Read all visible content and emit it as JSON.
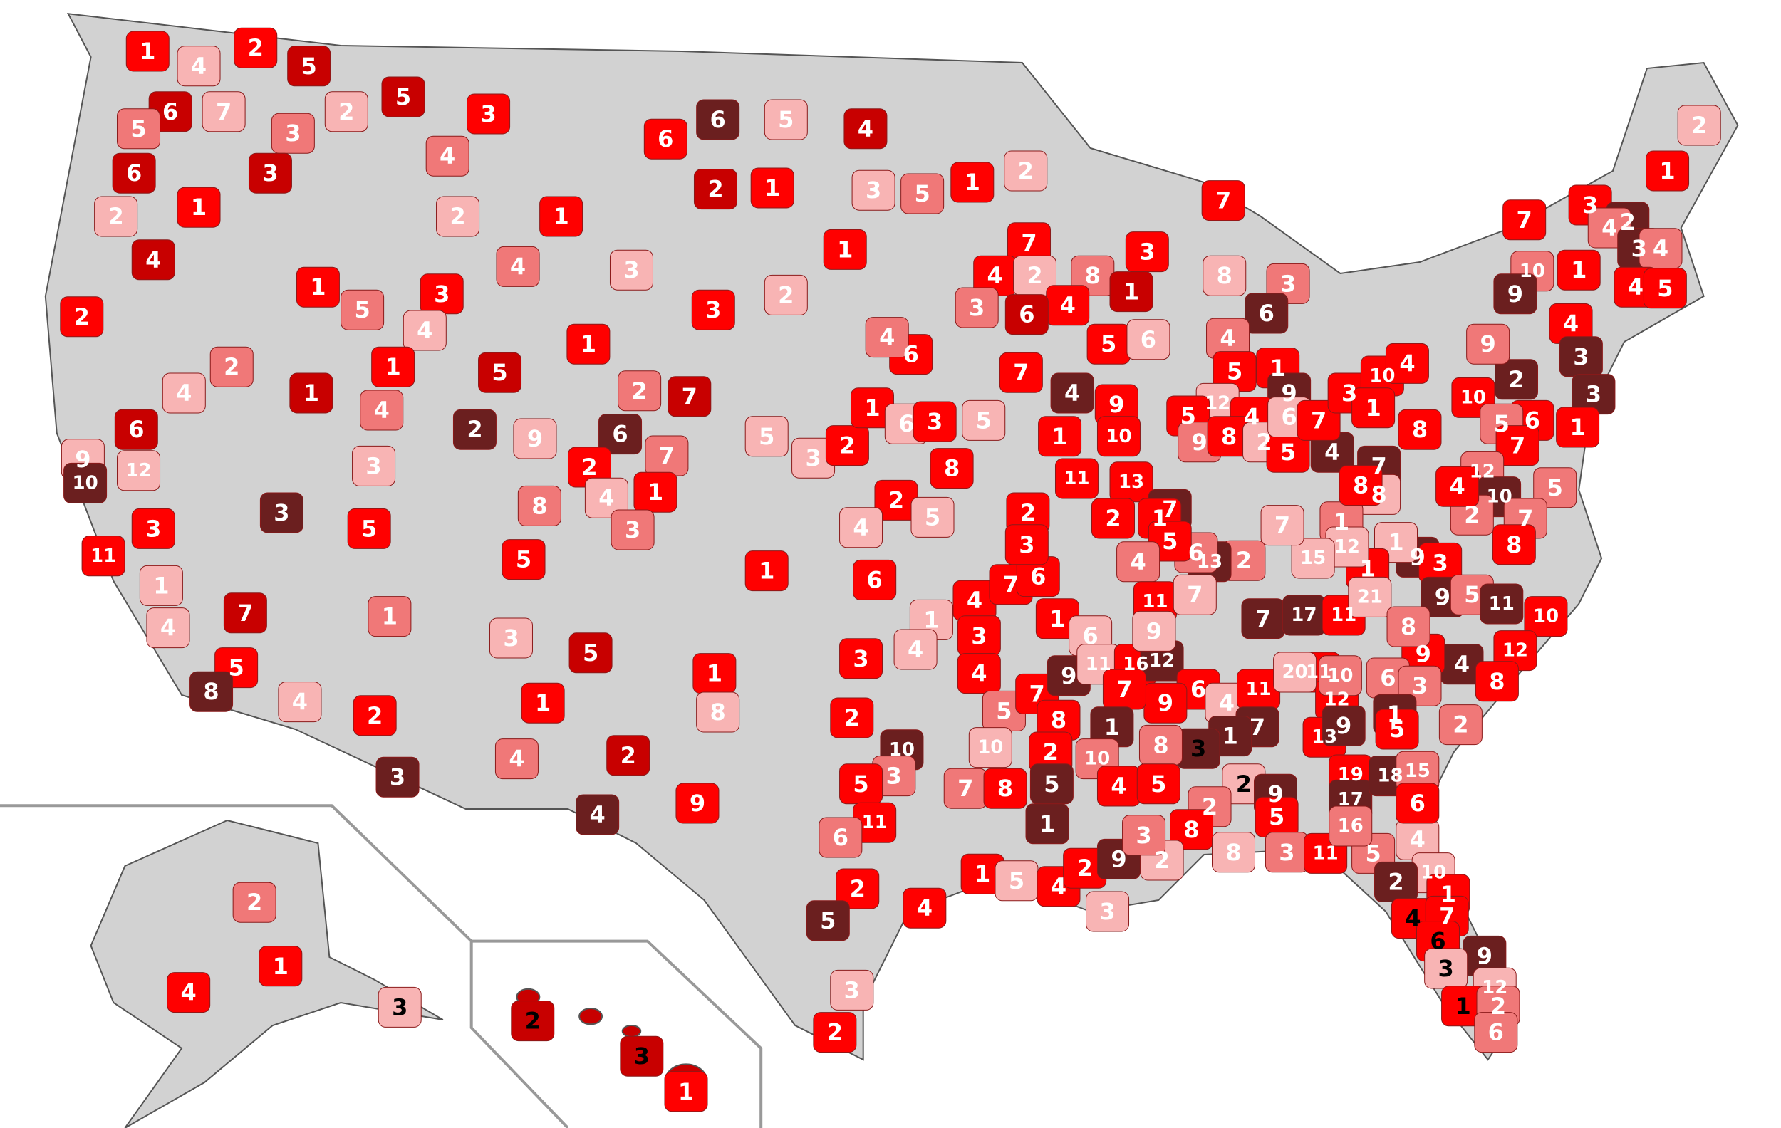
{
  "regions": [
    {
      "label": 1,
      "color": "#ff0000"
    },
    {
      "label": 2,
      "color": "#ff0000"
    },
    {
      "label": 5,
      "color": "#c80000"
    },
    {
      "label": 4,
      "color": "#f8b4b4"
    },
    {
      "label": 6,
      "color": "#c80000"
    },
    {
      "label": 5,
      "color": "#f07878"
    },
    {
      "label": 7,
      "color": "#f8b4b4"
    },
    {
      "label": 3,
      "color": "#f07878"
    },
    {
      "label": 6,
      "color": "#c80000"
    },
    {
      "label": 3,
      "color": "#c80000"
    },
    {
      "label": 1,
      "color": "#ff0000"
    },
    {
      "label": 2,
      "color": "#f8b4b4"
    },
    {
      "label": 4,
      "color": "#c80000"
    },
    {
      "label": 2,
      "color": "#ff0000"
    },
    {
      "label": 5,
      "color": "#c80000"
    },
    {
      "label": 3,
      "color": "#ff0000"
    },
    {
      "label": 2,
      "color": "#f8b4b4"
    },
    {
      "label": 4,
      "color": "#f07878"
    },
    {
      "label": 2,
      "color": "#f8b4b4"
    },
    {
      "label": 1,
      "color": "#ff0000"
    },
    {
      "label": 6,
      "color": "#ff0000"
    },
    {
      "label": 6,
      "color": "#6b1f1f"
    },
    {
      "label": 5,
      "color": "#f8b4b4"
    },
    {
      "label": 4,
      "color": "#c80000"
    },
    {
      "label": 2,
      "color": "#c80000"
    },
    {
      "label": 1,
      "color": "#ff0000"
    },
    {
      "label": 5,
      "color": "#f07878"
    },
    {
      "label": 1,
      "color": "#ff0000"
    },
    {
      "label": 2,
      "color": "#f8b4b4"
    },
    {
      "label": 3,
      "color": "#f8b4b4"
    },
    {
      "label": 1,
      "color": "#ff0000"
    },
    {
      "label": 5,
      "color": "#f07878"
    },
    {
      "label": 3,
      "color": "#ff0000"
    },
    {
      "label": 4,
      "color": "#f8b4b4"
    },
    {
      "label": 4,
      "color": "#f07878"
    },
    {
      "label": 3,
      "color": "#f8b4b4"
    },
    {
      "label": 1,
      "color": "#ff0000"
    },
    {
      "label": 5,
      "color": "#c80000"
    },
    {
      "label": 1,
      "color": "#ff0000"
    },
    {
      "label": 2,
      "color": "#f8b4b4"
    },
    {
      "label": 3,
      "color": "#ff0000"
    },
    {
      "label": 2,
      "color": "#f07878"
    },
    {
      "label": 1,
      "color": "#c80000"
    },
    {
      "label": 1,
      "color": "#ff0000"
    },
    {
      "label": 4,
      "color": "#f07878"
    },
    {
      "label": 4,
      "color": "#f8b4b4"
    },
    {
      "label": 2,
      "color": "#6b1f1f"
    },
    {
      "label": 9,
      "color": "#f8b4b4"
    },
    {
      "label": 6,
      "color": "#6b1f1f"
    },
    {
      "label": 2,
      "color": "#f07878"
    },
    {
      "label": 7,
      "color": "#c80000"
    },
    {
      "label": 6,
      "color": "#c80000"
    },
    {
      "label": 9,
      "color": "#f8b4b4"
    },
    {
      "label": 12,
      "color": "#f8b4b4"
    },
    {
      "label": 10,
      "color": "#6b1f1f"
    },
    {
      "label": 3,
      "color": "#f8b4b4"
    },
    {
      "label": 7,
      "color": "#f07878"
    },
    {
      "label": 2,
      "color": "#ff0000"
    },
    {
      "label": 1,
      "color": "#ff0000"
    },
    {
      "label": 4,
      "color": "#f8b4b4"
    },
    {
      "label": 3,
      "color": "#f07878"
    },
    {
      "label": 8,
      "color": "#f07878"
    },
    {
      "label": 3,
      "color": "#ff0000"
    },
    {
      "label": 3,
      "color": "#6b1f1f"
    },
    {
      "label": 5,
      "color": "#ff0000"
    },
    {
      "label": 5,
      "color": "#ff0000"
    },
    {
      "label": 11,
      "color": "#ff0000"
    },
    {
      "label": 1,
      "color": "#f8b4b4"
    },
    {
      "label": 4,
      "color": "#f8b4b4"
    },
    {
      "label": 7,
      "color": "#c80000"
    },
    {
      "label": 1,
      "color": "#f07878"
    },
    {
      "label": 3,
      "color": "#f8b4b4"
    },
    {
      "label": 5,
      "color": "#c80000"
    },
    {
      "label": 5,
      "color": "#ff0000"
    },
    {
      "label": 8,
      "color": "#6b1f1f"
    },
    {
      "label": 4,
      "color": "#f8b4b4"
    },
    {
      "label": 2,
      "color": "#ff0000"
    },
    {
      "label": 1,
      "color": "#ff0000"
    },
    {
      "label": 2,
      "color": "#c80000"
    },
    {
      "label": 4,
      "color": "#f07878"
    },
    {
      "label": 3,
      "color": "#6b1f1f"
    },
    {
      "label": 4,
      "color": "#6b1f1f"
    },
    {
      "label": 9,
      "color": "#ff0000"
    },
    {
      "label": 5,
      "color": "#f8b4b4"
    },
    {
      "label": 3,
      "color": "#f8b4b4"
    },
    {
      "label": 2,
      "color": "#ff0000"
    },
    {
      "label": 1,
      "color": "#ff0000"
    },
    {
      "label": 6,
      "color": "#f8b4b4"
    },
    {
      "label": 3,
      "color": "#ff0000"
    },
    {
      "label": 5,
      "color": "#f8b4b4"
    },
    {
      "label": 7,
      "color": "#ff0000"
    },
    {
      "label": 6,
      "color": "#ff0000"
    },
    {
      "label": 4,
      "color": "#f07878"
    },
    {
      "label": 8,
      "color": "#ff0000"
    },
    {
      "label": 2,
      "color": "#ff0000"
    },
    {
      "label": 4,
      "color": "#f8b4b4"
    },
    {
      "label": 5,
      "color": "#f8b4b4"
    },
    {
      "label": 6,
      "color": "#ff0000"
    },
    {
      "label": 1,
      "color": "#ff0000"
    },
    {
      "label": 4,
      "color": "#ff0000"
    },
    {
      "label": 3,
      "color": "#ff0000"
    },
    {
      "label": 7,
      "color": "#ff0000"
    },
    {
      "label": 6,
      "color": "#ff0000"
    },
    {
      "label": 2,
      "color": "#ff0000"
    },
    {
      "label": 3,
      "color": "#ff0000"
    },
    {
      "label": 1,
      "color": "#f8b4b4"
    },
    {
      "label": 4,
      "color": "#f8b4b4"
    },
    {
      "label": 3,
      "color": "#ff0000"
    },
    {
      "label": 2,
      "color": "#ff0000"
    },
    {
      "label": 10,
      "color": "#6b1f1f"
    },
    {
      "label": 3,
      "color": "#f07878"
    },
    {
      "label": 5,
      "color": "#ff0000"
    },
    {
      "label": 11,
      "color": "#ff0000"
    },
    {
      "label": 6,
      "color": "#f07878"
    },
    {
      "label": 1,
      "color": "#ff0000"
    },
    {
      "label": 8,
      "color": "#f8b4b4"
    },
    {
      "label": 4,
      "color": "#ff0000"
    },
    {
      "label": 5,
      "color": "#f07878"
    },
    {
      "label": 7,
      "color": "#ff0000"
    },
    {
      "label": 9,
      "color": "#6b1f1f"
    },
    {
      "label": 8,
      "color": "#ff0000"
    },
    {
      "label": 2,
      "color": "#ff0000"
    },
    {
      "label": 10,
      "color": "#f8b4b4"
    },
    {
      "label": 7,
      "color": "#f07878"
    },
    {
      "label": 8,
      "color": "#ff0000"
    },
    {
      "label": 5,
      "color": "#6b1f1f"
    },
    {
      "label": 1,
      "color": "#6b1f1f"
    },
    {
      "label": 1,
      "color": "#ff0000"
    },
    {
      "label": 5,
      "color": "#f8b4b4"
    },
    {
      "label": 4,
      "color": "#ff0000"
    },
    {
      "label": 2,
      "color": "#ff0000"
    },
    {
      "label": 9,
      "color": "#6b1f1f"
    },
    {
      "label": 3,
      "color": "#f8b4b4"
    },
    {
      "label": 4,
      "color": "#ff0000"
    },
    {
      "label": 2,
      "color": "#ff0000"
    },
    {
      "label": 5,
      "color": "#6b1f1f"
    },
    {
      "label": 3,
      "color": "#f8b4b4"
    },
    {
      "label": 2,
      "color": "#ff0000"
    },
    {
      "label": 1,
      "color": "#ff0000"
    },
    {
      "label": 6,
      "color": "#f8b4b4"
    },
    {
      "label": 11,
      "color": "#f8b4b4"
    },
    {
      "label": 4,
      "color": "#6b1f1f"
    },
    {
      "label": 1,
      "color": "#ff0000"
    },
    {
      "label": 9,
      "color": "#ff0000"
    },
    {
      "label": 10,
      "color": "#ff0000"
    },
    {
      "label": 11,
      "color": "#ff0000"
    },
    {
      "label": 13,
      "color": "#ff0000"
    },
    {
      "label": 7,
      "color": "#6b1f1f"
    },
    {
      "label": 2,
      "color": "#ff0000"
    },
    {
      "label": 7,
      "color": "#ff0000"
    },
    {
      "label": 4,
      "color": "#ff0000"
    },
    {
      "label": 2,
      "color": "#f8b4b4"
    },
    {
      "label": 8,
      "color": "#f07878"
    },
    {
      "label": 4,
      "color": "#ff0000"
    },
    {
      "label": 6,
      "color": "#c80000"
    },
    {
      "label": 3,
      "color": "#f07878"
    },
    {
      "label": 3,
      "color": "#ff0000"
    },
    {
      "label": 1,
      "color": "#c80000"
    },
    {
      "label": 5,
      "color": "#ff0000"
    },
    {
      "label": 6,
      "color": "#f8b4b4"
    },
    {
      "label": 7,
      "color": "#ff0000"
    },
    {
      "label": 8,
      "color": "#f8b4b4"
    },
    {
      "label": 3,
      "color": "#f07878"
    },
    {
      "label": 6,
      "color": "#6b1f1f"
    },
    {
      "label": 4,
      "color": "#f07878"
    },
    {
      "label": 5,
      "color": "#ff0000"
    },
    {
      "label": 1,
      "color": "#ff0000"
    },
    {
      "label": 9,
      "color": "#6b1f1f"
    },
    {
      "label": 12,
      "color": "#f8b4b4"
    },
    {
      "label": 5,
      "color": "#ff0000"
    },
    {
      "label": 4,
      "color": "#ff0000"
    },
    {
      "label": 9,
      "color": "#f07878"
    },
    {
      "label": 8,
      "color": "#ff0000"
    },
    {
      "label": 2,
      "color": "#f8b4b4"
    },
    {
      "label": 5,
      "color": "#ff0000"
    },
    {
      "label": 4,
      "color": "#6b1f1f"
    },
    {
      "label": 6,
      "color": "#f8b4b4"
    },
    {
      "label": 7,
      "color": "#ff0000"
    },
    {
      "label": 3,
      "color": "#ff0000"
    },
    {
      "label": 10,
      "color": "#ff0000"
    },
    {
      "label": 1,
      "color": "#ff0000"
    },
    {
      "label": 4,
      "color": "#ff0000"
    },
    {
      "label": 8,
      "color": "#ff0000"
    },
    {
      "label": 10,
      "color": "#ff0000"
    },
    {
      "label": 2,
      "color": "#6b1f1f"
    },
    {
      "label": 9,
      "color": "#f07878"
    },
    {
      "label": 10,
      "color": "#f07878"
    },
    {
      "label": 9,
      "color": "#6b1f1f"
    },
    {
      "label": 7,
      "color": "#ff0000"
    },
    {
      "label": 3,
      "color": "#ff0000"
    },
    {
      "label": 2,
      "color": "#6b1f1f"
    },
    {
      "label": 4,
      "color": "#f07878"
    },
    {
      "label": 3,
      "color": "#6b1f1f"
    },
    {
      "label": 4,
      "color": "#f07878"
    },
    {
      "label": 4,
      "color": "#ff0000"
    },
    {
      "label": 5,
      "color": "#ff0000"
    },
    {
      "label": 2,
      "color": "#f8b4b4"
    },
    {
      "label": 1,
      "color": "#ff0000"
    },
    {
      "label": 1,
      "color": "#ff0000"
    },
    {
      "label": 4,
      "color": "#ff0000"
    },
    {
      "label": 3,
      "color": "#6b1f1f"
    },
    {
      "label": 3,
      "color": "#6b1f1f"
    },
    {
      "label": 6,
      "color": "#ff0000"
    },
    {
      "label": 5,
      "color": "#f07878"
    },
    {
      "label": 1,
      "color": "#ff0000"
    },
    {
      "label": 7,
      "color": "#ff0000"
    },
    {
      "label": 5,
      "color": "#f07878"
    },
    {
      "label": 12,
      "color": "#f07878"
    },
    {
      "label": 10,
      "color": "#6b1f1f"
    },
    {
      "label": 7,
      "color": "#f07878"
    },
    {
      "label": 8,
      "color": "#ff0000"
    },
    {
      "label": 2,
      "color": "#f07878"
    },
    {
      "label": 4,
      "color": "#ff0000"
    },
    {
      "label": 9,
      "color": "#6b1f1f"
    },
    {
      "label": 3,
      "color": "#ff0000"
    },
    {
      "label": 1,
      "color": "#f8b4b4"
    },
    {
      "label": 1,
      "color": "#ff0000"
    },
    {
      "label": 7,
      "color": "#6b1f1f"
    },
    {
      "label": 8,
      "color": "#f8b4b4"
    },
    {
      "label": 1,
      "color": "#f07878"
    },
    {
      "label": 12,
      "color": "#f8b4b4"
    },
    {
      "label": 8,
      "color": "#ff0000"
    },
    {
      "label": 15,
      "color": "#f8b4b4"
    },
    {
      "label": 7,
      "color": "#f8b4b4"
    },
    {
      "label": 2,
      "color": "#f07878"
    },
    {
      "label": 13,
      "color": "#6b1f1f"
    },
    {
      "label": 1,
      "color": "#ff0000"
    },
    {
      "label": 6,
      "color": "#f07878"
    },
    {
      "label": 5,
      "color": "#ff0000"
    },
    {
      "label": 4,
      "color": "#f07878"
    },
    {
      "label": 11,
      "color": "#ff0000"
    },
    {
      "label": 7,
      "color": "#f8b4b4"
    },
    {
      "label": 7,
      "color": "#6b1f1f"
    },
    {
      "label": 17,
      "color": "#6b1f1f"
    },
    {
      "label": 11,
      "color": "#ff0000"
    },
    {
      "label": 21,
      "color": "#f8b4b4"
    },
    {
      "label": 9,
      "color": "#6b1f1f"
    },
    {
      "label": 5,
      "color": "#f07878"
    },
    {
      "label": 11,
      "color": "#6b1f1f"
    },
    {
      "label": 10,
      "color": "#ff0000"
    },
    {
      "label": 12,
      "color": "#ff0000"
    },
    {
      "label": 4,
      "color": "#6b1f1f"
    },
    {
      "label": 9,
      "color": "#ff0000"
    },
    {
      "label": 8,
      "color": "#f07878"
    },
    {
      "label": 6,
      "color": "#f07878"
    },
    {
      "label": 3,
      "color": "#f07878"
    },
    {
      "label": 1,
      "color": "#6b1f1f"
    },
    {
      "label": 2,
      "color": "#f07878"
    },
    {
      "label": 8,
      "color": "#ff0000"
    },
    {
      "label": 16,
      "color": "#ff0000"
    },
    {
      "label": 12,
      "color": "#6b1f1f"
    },
    {
      "label": 9,
      "color": "#f8b4b4"
    },
    {
      "label": 6,
      "color": "#ff0000"
    },
    {
      "label": 4,
      "color": "#f8b4b4"
    },
    {
      "label": 11,
      "color": "#ff0000"
    },
    {
      "label": 7,
      "color": "#6b1f1f"
    },
    {
      "label": 1,
      "color": "#6b1f1f"
    },
    {
      "label": 3,
      "color": "#6b1f1f",
      "text_color": "#000000"
    },
    {
      "label": 9,
      "color": "#ff0000"
    },
    {
      "label": 7,
      "color": "#ff0000"
    },
    {
      "label": 1,
      "color": "#6b1f1f"
    },
    {
      "label": 10,
      "color": "#f07878"
    },
    {
      "label": 8,
      "color": "#f07878"
    },
    {
      "label": 4,
      "color": "#ff0000"
    },
    {
      "label": 5,
      "color": "#ff0000"
    },
    {
      "label": 2,
      "color": "#f8b4b4",
      "text_color": "#000000"
    },
    {
      "label": 9,
      "color": "#6b1f1f"
    },
    {
      "label": 5,
      "color": "#ff0000"
    },
    {
      "label": 2,
      "color": "#f07878"
    },
    {
      "label": 8,
      "color": "#ff0000"
    },
    {
      "label": 2,
      "color": "#f8b4b4"
    },
    {
      "label": 3,
      "color": "#f07878"
    },
    {
      "label": 8,
      "color": "#f8b4b4"
    },
    {
      "label": 3,
      "color": "#f07878"
    },
    {
      "label": 11,
      "color": "#ff0000"
    },
    {
      "label": 5,
      "color": "#f07878"
    },
    {
      "label": 4,
      "color": "#f8b4b4"
    },
    {
      "label": 10,
      "color": "#f8b4b4"
    },
    {
      "label": 2,
      "color": "#6b1f1f"
    },
    {
      "label": 1,
      "color": "#ff0000"
    },
    {
      "label": 4,
      "color": "#ff0000",
      "text_color": "#000000"
    },
    {
      "label": 7,
      "color": "#ff0000"
    },
    {
      "label": 6,
      "color": "#ff0000",
      "text_color": "#000000"
    },
    {
      "label": 9,
      "color": "#6b1f1f"
    },
    {
      "label": 3,
      "color": "#f8b4b4",
      "text_color": "#000000"
    },
    {
      "label": 12,
      "color": "#f8b4b4"
    },
    {
      "label": 1,
      "color": "#ff0000",
      "text_color": "#000000"
    },
    {
      "label": 2,
      "color": "#f07878"
    },
    {
      "label": 6,
      "color": "#f07878"
    },
    {
      "label": 11,
      "color": "#ff0000"
    },
    {
      "label": 12,
      "color": "#ff0000"
    },
    {
      "label": 13,
      "color": "#ff0000"
    },
    {
      "label": 9,
      "color": "#6b1f1f"
    },
    {
      "label": 19,
      "color": "#ff0000"
    },
    {
      "label": 17,
      "color": "#6b1f1f"
    },
    {
      "label": 16,
      "color": "#f07878"
    },
    {
      "label": 18,
      "color": "#6b1f1f"
    },
    {
      "label": 15,
      "color": "#f07878"
    },
    {
      "label": 6,
      "color": "#ff0000"
    },
    {
      "label": 5,
      "color": "#ff0000"
    },
    {
      "label": 20,
      "color": "#f8b4b4"
    },
    {
      "label": 10,
      "color": "#f07878"
    },
    {
      "label": 2,
      "color": "#f07878"
    },
    {
      "label": 1,
      "color": "#ff0000"
    },
    {
      "label": 4,
      "color": "#ff0000"
    },
    {
      "label": 3,
      "color": "#f8b4b4",
      "text_color": "#000000"
    },
    {
      "label": 2,
      "color": "#c80000",
      "text_color": "#000000"
    },
    {
      "label": 3,
      "color": "#c80000",
      "text_color": "#000000"
    },
    {
      "label": 1,
      "color": "#ff0000"
    }
  ]
}
